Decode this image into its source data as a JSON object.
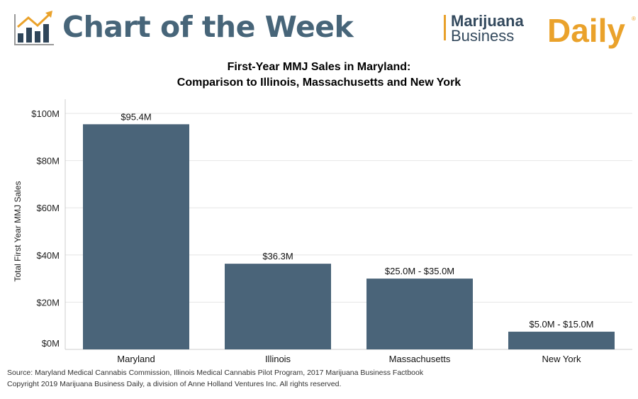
{
  "header": {
    "title": "Chart of the Week",
    "brand_line1": "Marijuana",
    "brand_line2": "Business",
    "brand_line3": "Daily",
    "brand_reg": "®"
  },
  "colors": {
    "bar": "#4a6479",
    "header_text": "#476579",
    "brand_orange": "#eaa22b",
    "grid": "#e6e6e6"
  },
  "chart_data": {
    "type": "bar",
    "title": "First-Year MMJ Sales in Maryland:",
    "subtitle": "Comparison to Illinois, Massachusetts and New York",
    "xlabel": "",
    "ylabel": "Total First Year MMJ Sales",
    "categories": [
      "Maryland",
      "Illinois",
      "Massachusetts",
      "New York"
    ],
    "values": [
      95.4,
      36.3,
      30.0,
      7.5
    ],
    "data_labels": [
      "$95.4M",
      "$36.3M",
      "$25.0M - $35.0M",
      "$5.0M - $15.0M"
    ],
    "ylim": [
      0,
      100
    ],
    "yticks": [
      0,
      20,
      40,
      60,
      80,
      100
    ],
    "ytick_labels": [
      "$0M",
      "$20M",
      "$40M",
      "$60M",
      "$80M",
      "$100M"
    ],
    "grid": true
  },
  "footer": {
    "source": "Source: Maryland Medical Cannabis Commission, Illinois Medical Cannabis Pilot Program, 2017 Marijuana Business Factbook",
    "copyright": "Copyright 2019 Marijuana Business Daily, a division of Anne Holland Ventures Inc. All rights reserved."
  }
}
